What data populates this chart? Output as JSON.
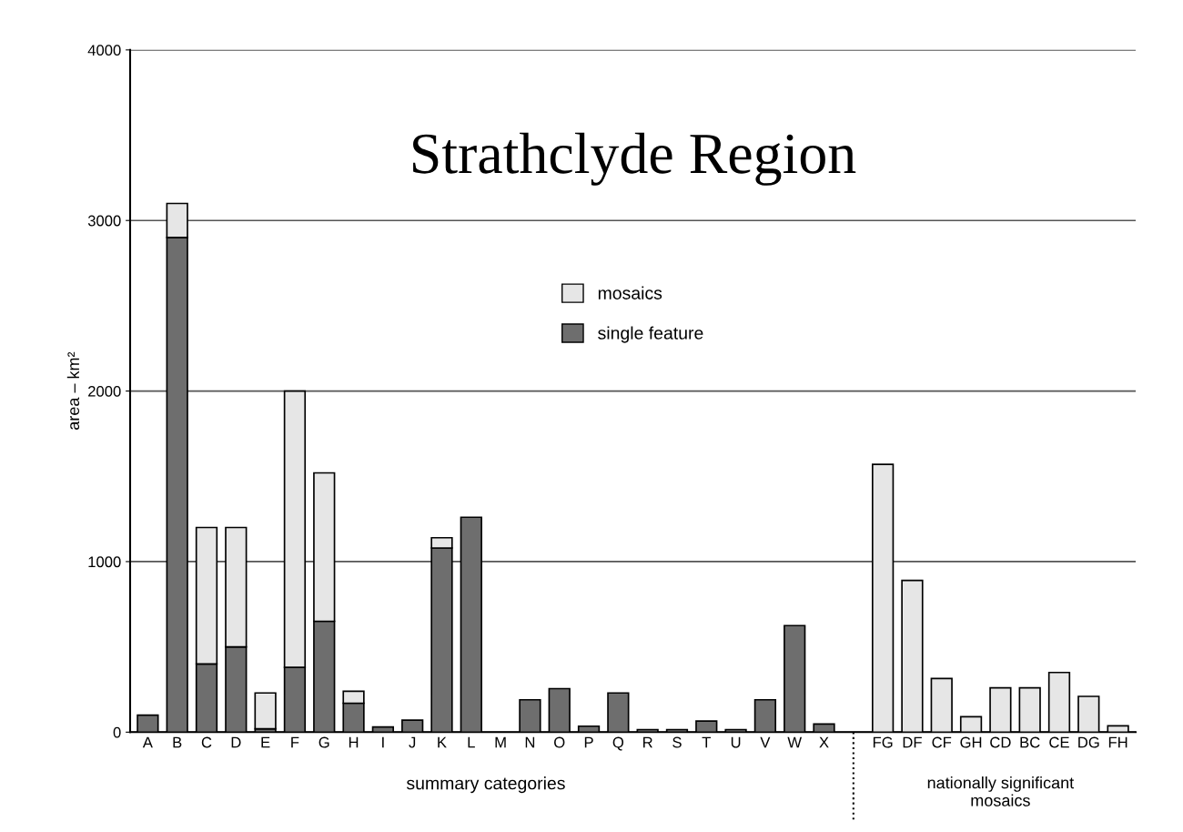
{
  "chart_data": {
    "type": "bar",
    "title": "Strathclyde Region",
    "xlabel": "summary categories",
    "ylabel": "area – km²",
    "categories": [
      "A",
      "B",
      "C",
      "D",
      "E",
      "F",
      "G",
      "H",
      "I",
      "J",
      "K",
      "L",
      "M",
      "N",
      "O",
      "P",
      "Q",
      "R",
      "S",
      "T",
      "U",
      "V",
      "W",
      "X",
      null,
      "FG",
      "DF",
      "CF",
      "GH",
      "CD",
      "BC",
      "CE",
      "DG",
      "FH"
    ],
    "stacked": true,
    "series": [
      {
        "name": "single feature",
        "color": "#6e6e6e",
        "values": [
          100,
          2900,
          400,
          500,
          20,
          380,
          650,
          170,
          30,
          70,
          1080,
          1260,
          null,
          190,
          255,
          35,
          230,
          15,
          15,
          65,
          15,
          190,
          625,
          48,
          null,
          null,
          null,
          null,
          null,
          null,
          null,
          null,
          null,
          null
        ]
      },
      {
        "name": "mosaics",
        "color": "#e6e6e6",
        "values": [
          null,
          200,
          800,
          700,
          210,
          1620,
          870,
          70,
          null,
          null,
          60,
          null,
          null,
          null,
          null,
          null,
          null,
          null,
          null,
          null,
          null,
          null,
          null,
          null,
          null,
          1570,
          890,
          315,
          90,
          260,
          260,
          350,
          210,
          37
        ]
      }
    ],
    "ylim": [
      0,
      4000
    ],
    "yticks": [
      0,
      1000,
      2000,
      3000,
      4000
    ],
    "grid": "y",
    "legend": "top",
    "annotations": [
      "nationally significant\nmosaics"
    ]
  }
}
